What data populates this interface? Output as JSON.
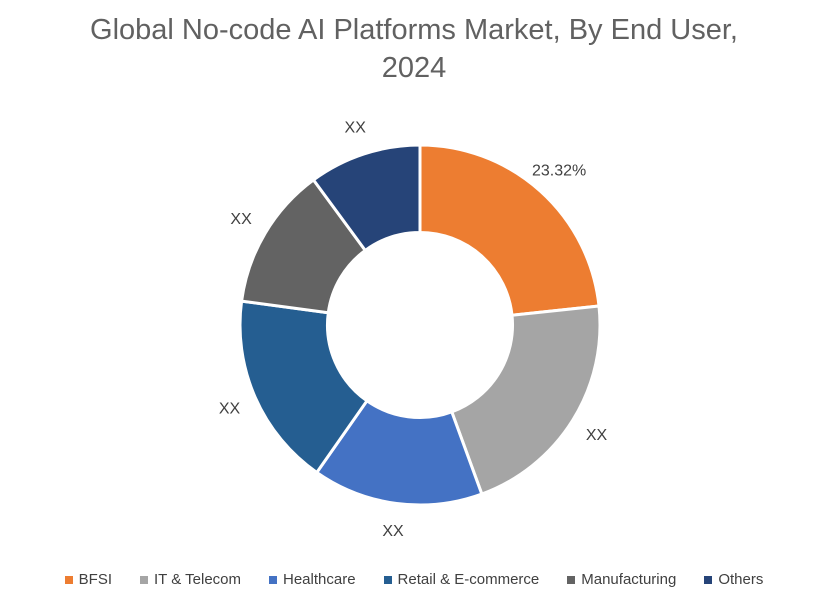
{
  "chart_data": {
    "type": "donut",
    "title": "Global No-code AI Platforms Market, By End User, 2024",
    "unit": "percent share of market",
    "segments": [
      {
        "name": "BFSI",
        "value": 23.32,
        "label": "23.32%",
        "color": "#ED7D31"
      },
      {
        "name": "IT & Telecom",
        "value": 21.1,
        "label": "XX",
        "color": "#A5A5A5"
      },
      {
        "name": "Healthcare",
        "value": 15.3,
        "label": "XX",
        "color": "#4472C4"
      },
      {
        "name": "Retail & E-commerce",
        "value": 17.4,
        "label": "XX",
        "color": "#255E91"
      },
      {
        "name": "Manufacturing",
        "value": 12.8,
        "label": "XX",
        "color": "#636363"
      },
      {
        "name": "Others",
        "value": 10.08,
        "label": "XX",
        "color": "#264478"
      }
    ],
    "start_angle_deg": 0,
    "hole_ratio": 0.514,
    "slice_border_color": "#FFFFFF",
    "legend_position": "bottom",
    "title_color": "#616161",
    "label_color": "#404040"
  }
}
